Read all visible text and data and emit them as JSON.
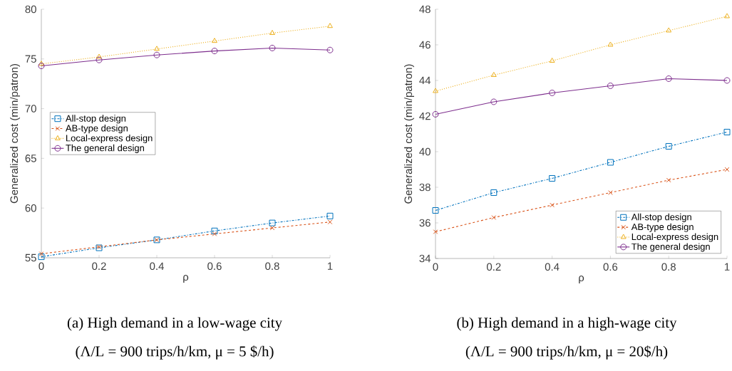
{
  "chart_data": [
    {
      "type": "line",
      "xlabel": "ρ",
      "ylabel": "Generalized cost (min/patron)",
      "x": [
        0,
        0.2,
        0.4,
        0.6,
        0.8,
        1
      ],
      "xlim": [
        0,
        1
      ],
      "ylim": [
        55,
        80
      ],
      "xticks": [
        0,
        0.2,
        0.4,
        0.6,
        0.8,
        1
      ],
      "yticks": [
        55,
        60,
        65,
        70,
        75,
        80
      ],
      "legend": "left",
      "annotations": [
        "(a) High demand in a low-wage city",
        "(Λ/L = 900 trips/h/km, μ = 5 $/h)"
      ],
      "series": [
        {
          "name": "All-stop design",
          "color": "#0072bd",
          "marker": "square",
          "line_style": "dashdot",
          "values": [
            55.1,
            56.0,
            56.8,
            57.7,
            58.5,
            59.2
          ]
        },
        {
          "name": "AB-type design",
          "color": "#d95319",
          "marker": "cross",
          "line_style": "dashed",
          "values": [
            55.4,
            56.1,
            56.8,
            57.4,
            58.0,
            58.6
          ]
        },
        {
          "name": "Local-express design",
          "color": "#edb120",
          "marker": "triangle",
          "line_style": "dotted",
          "values": [
            74.5,
            75.2,
            76.0,
            76.8,
            77.6,
            78.3
          ]
        },
        {
          "name": "The general design",
          "color": "#7e2f8e",
          "marker": "circle",
          "line_style": "solid",
          "values": [
            74.3,
            74.9,
            75.4,
            75.8,
            76.1,
            75.9
          ]
        }
      ]
    },
    {
      "type": "line",
      "xlabel": "ρ",
      "ylabel": "Generalized cost (min/patron)",
      "x": [
        0,
        0.2,
        0.4,
        0.6,
        0.8,
        1
      ],
      "xlim": [
        0,
        1
      ],
      "ylim": [
        34,
        48
      ],
      "xticks": [
        0,
        0.2,
        0.4,
        0.6,
        0.8,
        1
      ],
      "yticks": [
        34,
        36,
        38,
        40,
        42,
        44,
        46,
        48
      ],
      "legend": "bottom right",
      "annotations": [
        "(b) High demand in a high-wage city",
        "(Λ/L = 900 trips/h/km, μ = 20$/h)"
      ],
      "series": [
        {
          "name": "All-stop design",
          "color": "#0072bd",
          "marker": "square",
          "line_style": "dashdot",
          "values": [
            36.7,
            37.7,
            38.5,
            39.4,
            40.3,
            41.1
          ]
        },
        {
          "name": "AB-type design",
          "color": "#d95319",
          "marker": "cross",
          "line_style": "dashed",
          "values": [
            35.5,
            36.3,
            37.0,
            37.7,
            38.4,
            39.0
          ]
        },
        {
          "name": "Local-express design",
          "color": "#edb120",
          "marker": "triangle",
          "line_style": "dotted",
          "values": [
            43.4,
            44.3,
            45.1,
            46.0,
            46.8,
            47.6
          ]
        },
        {
          "name": "The general design",
          "color": "#7e2f8e",
          "marker": "circle",
          "line_style": "solid",
          "values": [
            42.1,
            42.8,
            43.3,
            43.7,
            44.1,
            44.0
          ]
        }
      ]
    }
  ]
}
